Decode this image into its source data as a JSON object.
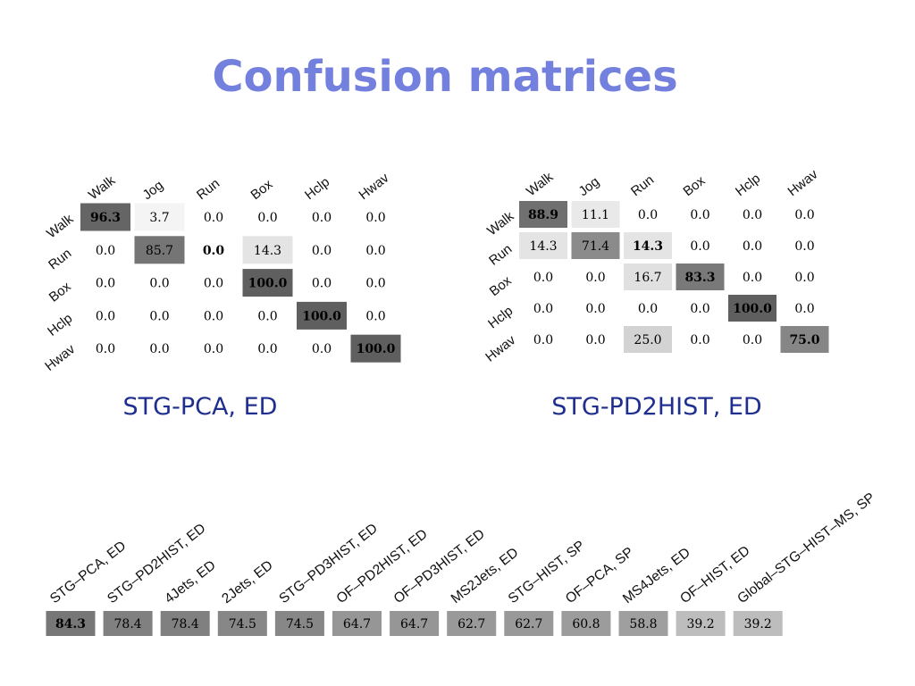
{
  "title": "Confusion matrices",
  "colors": {
    "title": "#7380dd",
    "caption": "#1f2f8f"
  },
  "chart_data": [
    {
      "type": "heatmap",
      "caption": "STG-PCA, ED",
      "col_labels": [
        "Walk",
        "Jog",
        "Run",
        "Box",
        "Hclp",
        "Hwav"
      ],
      "row_labels": [
        "Walk",
        "Run",
        "Box",
        "Hclp",
        "Hwav"
      ],
      "values": [
        [
          "96.3",
          "3.7",
          "0.0",
          "0.0",
          "0.0",
          "0.0"
        ],
        [
          "0.0",
          "85.7",
          "0.0",
          "14.3",
          "0.0",
          "0.0"
        ],
        [
          "0.0",
          "0.0",
          "0.0",
          "100.0",
          "0.0",
          "0.0"
        ],
        [
          "0.0",
          "0.0",
          "0.0",
          "0.0",
          "100.0",
          "0.0"
        ],
        [
          "0.0",
          "0.0",
          "0.0",
          "0.0",
          "0.0",
          "100.0"
        ]
      ],
      "bold": [
        [
          0,
          0
        ],
        [
          1,
          2
        ],
        [
          2,
          3
        ],
        [
          3,
          4
        ],
        [
          4,
          5
        ]
      ]
    },
    {
      "type": "heatmap",
      "caption": "STG-PD2HIST, ED",
      "col_labels": [
        "Walk",
        "Jog",
        "Run",
        "Box",
        "Hclp",
        "Hwav"
      ],
      "row_labels": [
        "Walk",
        "Run",
        "Box",
        "Hclp",
        "Hwav"
      ],
      "values": [
        [
          "88.9",
          "11.1",
          "0.0",
          "0.0",
          "0.0",
          "0.0"
        ],
        [
          "14.3",
          "71.4",
          "14.3",
          "0.0",
          "0.0",
          "0.0"
        ],
        [
          "0.0",
          "0.0",
          "16.7",
          "83.3",
          "0.0",
          "0.0"
        ],
        [
          "0.0",
          "0.0",
          "0.0",
          "0.0",
          "100.0",
          "0.0"
        ],
        [
          "0.0",
          "0.0",
          "25.0",
          "0.0",
          "0.0",
          "75.0"
        ]
      ],
      "bold": [
        [
          0,
          0
        ],
        [
          1,
          2
        ],
        [
          2,
          3
        ],
        [
          3,
          4
        ],
        [
          4,
          5
        ]
      ]
    },
    {
      "type": "heatmap",
      "categories": [
        "STG–PCA, ED",
        "STG–PD2HIST, ED",
        "4Jets, ED",
        "2Jets, ED",
        "STG–PD3HIST, ED",
        "OF–PD2HIST, ED",
        "OF–PD3HIST, ED",
        "MS2Jets, ED",
        "STG–HIST, SP",
        "OF–PCA, SP",
        "MS4Jets, ED",
        "OF–HIST, ED",
        "Global–STG–HIST–MS, SP"
      ],
      "values": [
        "84.3",
        "78.4",
        "78.4",
        "74.5",
        "74.5",
        "64.7",
        "64.7",
        "62.7",
        "62.7",
        "60.8",
        "58.8",
        "39.2",
        "39.2"
      ],
      "bold": [
        0
      ]
    }
  ]
}
